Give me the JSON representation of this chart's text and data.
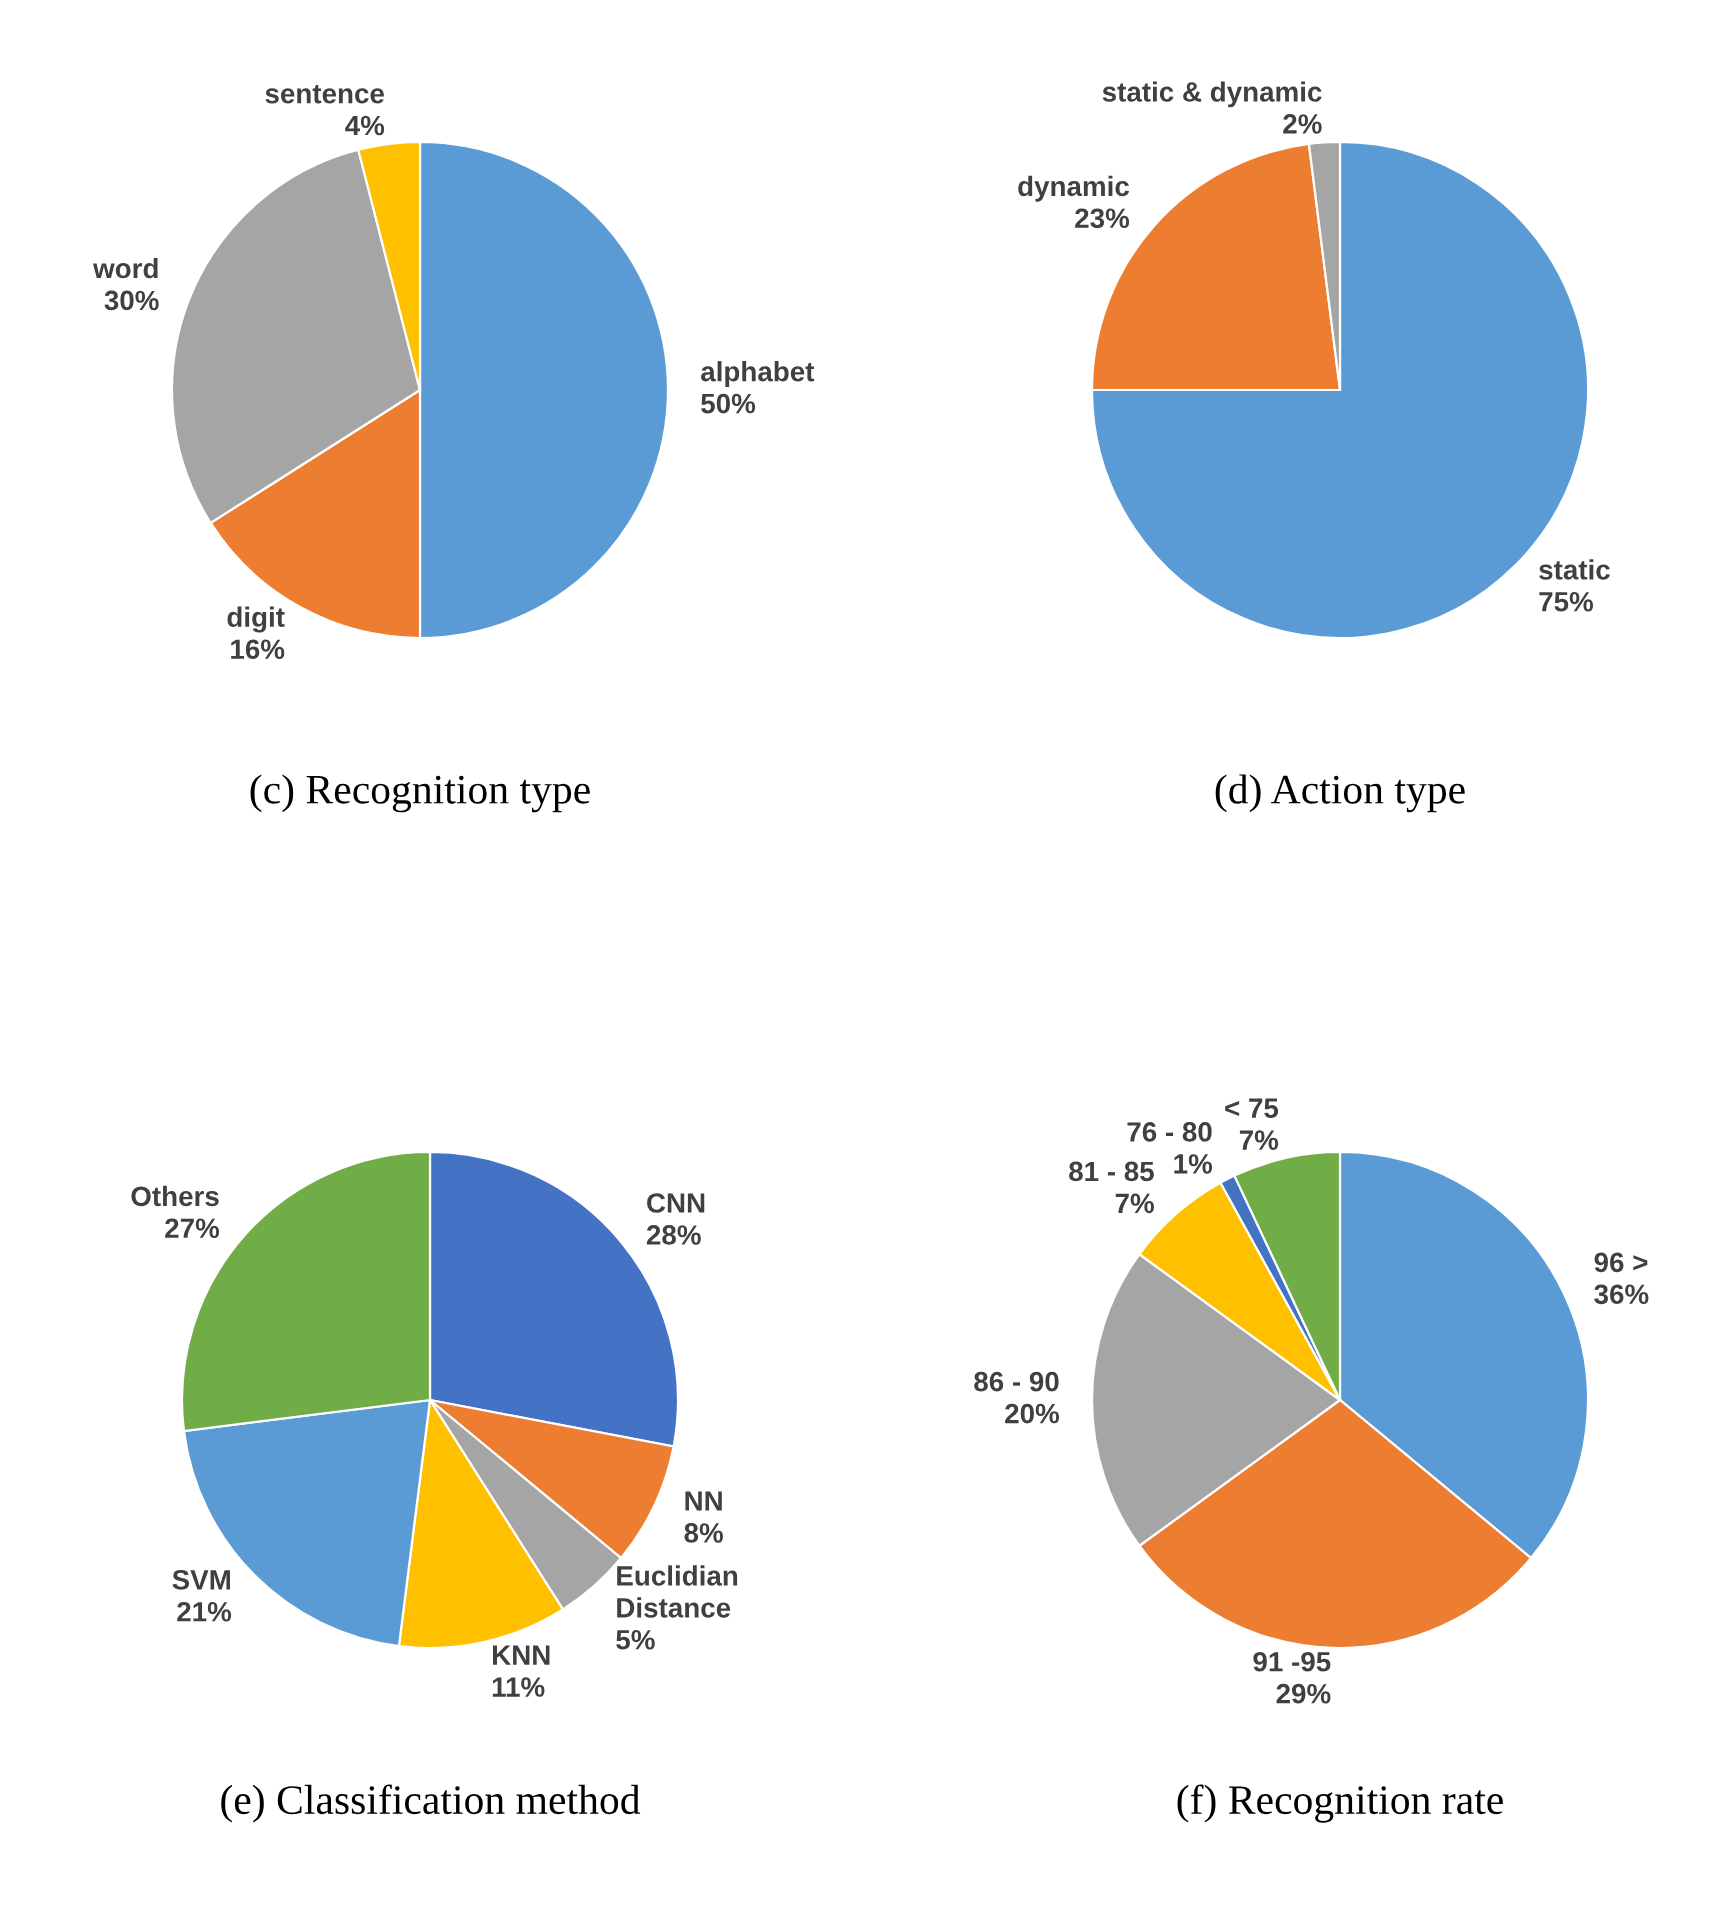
{
  "chart_data": [
    {
      "type": "pie",
      "title": "(c) Recognition type",
      "categories": [
        "alphabet",
        "digit",
        "word",
        "sentence"
      ],
      "values": [
        50,
        16,
        30,
        4
      ],
      "value_labels": [
        "50%",
        "16%",
        "30%",
        "4%"
      ],
      "colors": [
        "#5b9bd5",
        "#ed7d31",
        "#a5a5a5",
        "#ffc000"
      ]
    },
    {
      "type": "pie",
      "title": "(d) Action type",
      "categories": [
        "static",
        "dynamic",
        "static & dynamic"
      ],
      "values": [
        75,
        23,
        2
      ],
      "value_labels": [
        "75%",
        "23%",
        "2%"
      ],
      "colors": [
        "#5b9bd5",
        "#ed7d31",
        "#a5a5a5"
      ]
    },
    {
      "type": "pie",
      "title": "(e) Classification method",
      "categories": [
        "CNN",
        "NN",
        "Euclidian\nDistance",
        "KNN",
        "SVM",
        "Others"
      ],
      "values": [
        28,
        8,
        5,
        11,
        21,
        27
      ],
      "value_labels": [
        "28%",
        "8%",
        "5%",
        "11%",
        "21%",
        "27%"
      ],
      "colors": [
        "#4472c4",
        "#ed7d31",
        "#a5a5a5",
        "#ffc000",
        "#5b9bd5",
        "#70ad47"
      ]
    },
    {
      "type": "pie",
      "title": "(f) Recognition rate",
      "categories": [
        "96 >",
        "91 -95",
        "86 - 90",
        "81 - 85",
        "76 - 80",
        "< 75"
      ],
      "values": [
        36,
        29,
        20,
        7,
        1,
        7
      ],
      "value_labels": [
        "36%",
        "29%",
        "20%",
        "7%",
        "1%",
        "7%"
      ],
      "colors": [
        "#5b9bd5",
        "#ed7d31",
        "#a5a5a5",
        "#ffc000",
        "#4472c4",
        "#70ad47"
      ]
    }
  ]
}
